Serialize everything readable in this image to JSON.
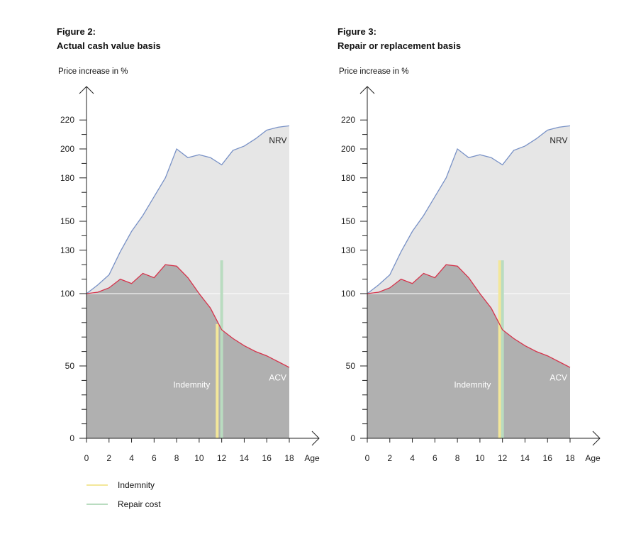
{
  "figures": [
    {
      "number": "Figure 2:",
      "title": "Actual cash value basis",
      "ylabel": "Price increase in %"
    },
    {
      "number": "Figure 3:",
      "title": "Repair or replacement basis",
      "ylabel": "Price increase in %"
    }
  ],
  "legend": [
    {
      "label": "Indemnity",
      "color": "#f3e79a"
    },
    {
      "label": "Repair cost",
      "color": "#b9dcc0"
    }
  ],
  "chart_data": [
    {
      "type": "area",
      "title": "Actual cash value basis",
      "xlabel": "Age",
      "ylabel": "Price increase in %",
      "x_ticks": [
        0,
        2,
        4,
        6,
        8,
        10,
        12,
        14,
        16,
        18
      ],
      "y_ticks": [
        0,
        50,
        100,
        130,
        150,
        180,
        200,
        220
      ],
      "xlim": [
        0,
        18
      ],
      "ylim": [
        0,
        220
      ],
      "grid": false,
      "colors": {
        "nrv": "#7891c6",
        "acv": "#d6334b",
        "nrv_fill": "#e6e6e6",
        "acv_fill": "#b0b0b0",
        "indemnity": "#f3e79a",
        "repair": "#b9dcc0"
      },
      "series": [
        {
          "name": "NRV",
          "x": [
            0,
            1,
            2,
            3,
            4,
            5,
            6,
            7,
            8,
            9,
            10,
            11,
            12,
            13,
            14,
            15,
            16,
            17,
            18
          ],
          "values": [
            100,
            106,
            113,
            129,
            143,
            154,
            167,
            180,
            200,
            194,
            196,
            194,
            189,
            199,
            202,
            207,
            213,
            215,
            216
          ]
        },
        {
          "name": "ACV",
          "x": [
            0,
            1,
            2,
            3,
            4,
            5,
            6,
            7,
            8,
            9,
            10,
            11,
            12,
            13,
            14,
            15,
            16,
            17,
            18
          ],
          "values": [
            100,
            101,
            104,
            110,
            107,
            114,
            111,
            120,
            119,
            111,
            100,
            90,
            75,
            69,
            64,
            60,
            57,
            53,
            49
          ]
        }
      ],
      "bars": [
        {
          "name": "Indemnity",
          "x": 11.6,
          "value": 79
        },
        {
          "name": "Repair cost",
          "x": 12.0,
          "value": 123
        }
      ],
      "labels": {
        "nrv": "NRV",
        "acv": "ACV",
        "indemnity": "Indemnity"
      }
    },
    {
      "type": "area",
      "title": "Repair or replacement basis",
      "xlabel": "Age",
      "ylabel": "Price increase in %",
      "x_ticks": [
        0,
        2,
        4,
        6,
        8,
        10,
        12,
        14,
        16,
        18
      ],
      "y_ticks": [
        0,
        50,
        100,
        130,
        150,
        180,
        200,
        220
      ],
      "xlim": [
        0,
        18
      ],
      "ylim": [
        0,
        220
      ],
      "grid": false,
      "colors": {
        "nrv": "#7891c6",
        "acv": "#d6334b",
        "nrv_fill": "#e6e6e6",
        "acv_fill": "#b0b0b0",
        "indemnity": "#f3e79a",
        "repair": "#b9dcc0"
      },
      "series": [
        {
          "name": "NRV",
          "x": [
            0,
            1,
            2,
            3,
            4,
            5,
            6,
            7,
            8,
            9,
            10,
            11,
            12,
            13,
            14,
            15,
            16,
            17,
            18
          ],
          "values": [
            100,
            106,
            113,
            129,
            143,
            154,
            167,
            180,
            200,
            194,
            196,
            194,
            189,
            199,
            202,
            207,
            213,
            215,
            216
          ]
        },
        {
          "name": "ACV",
          "x": [
            0,
            1,
            2,
            3,
            4,
            5,
            6,
            7,
            8,
            9,
            10,
            11,
            12,
            13,
            14,
            15,
            16,
            17,
            18
          ],
          "values": [
            100,
            101,
            104,
            110,
            107,
            114,
            111,
            120,
            119,
            111,
            100,
            90,
            75,
            69,
            64,
            60,
            57,
            53,
            49
          ]
        }
      ],
      "bars": [
        {
          "name": "Indemnity",
          "x": 11.75,
          "value": 123
        },
        {
          "name": "Repair cost",
          "x": 12.0,
          "value": 123
        }
      ],
      "labels": {
        "nrv": "NRV",
        "acv": "ACV",
        "indemnity": "Indemnity"
      }
    }
  ]
}
